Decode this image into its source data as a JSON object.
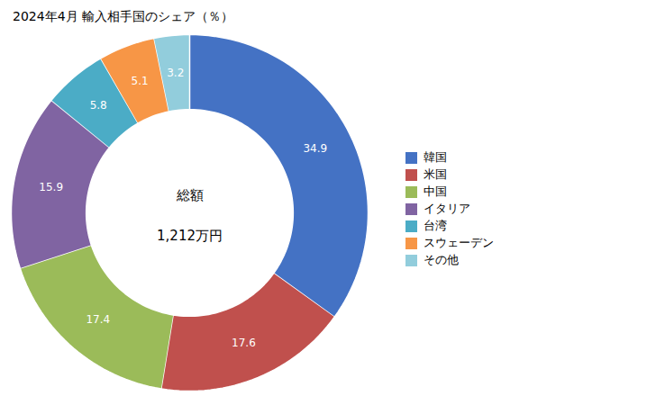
{
  "chart_data": {
    "type": "donut",
    "title": "2024年4月 輸入相手国のシェア（％）",
    "categories": [
      "韓国",
      "米国",
      "中国",
      "イタリア",
      "台湾",
      "スウェーデン",
      "その他"
    ],
    "values": [
      34.9,
      17.6,
      17.4,
      15.9,
      5.8,
      5.1,
      3.2
    ],
    "colors": [
      "#4472C4",
      "#C0504D",
      "#9BBB59",
      "#8064A2",
      "#4BACC6",
      "#F79646",
      "#92CDDC"
    ],
    "annotations": [
      "総額",
      "1,212万円"
    ],
    "data_labels": true,
    "legend": "right"
  }
}
